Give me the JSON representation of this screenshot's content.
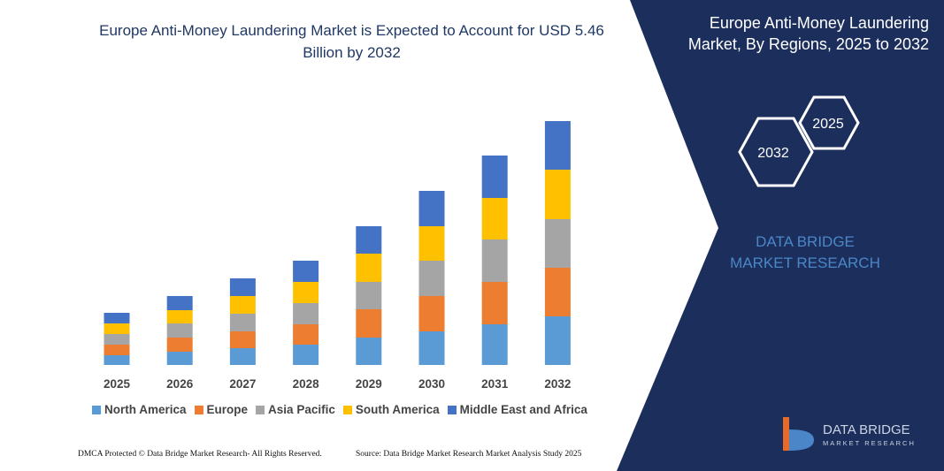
{
  "chart_data": {
    "type": "stacked_bar",
    "title": "Europe Anti-Money Laundering Market is Expected to Account for USD 5.46 Billion by 2032",
    "categories": [
      "2025",
      "2026",
      "2027",
      "2028",
      "2029",
      "2030",
      "2031",
      "2032"
    ],
    "series": [
      {
        "name": "North America",
        "color": "#5b9bd5",
        "values": [
          11,
          15,
          19,
          23,
          31,
          38,
          46,
          55
        ]
      },
      {
        "name": "Europe",
        "color": "#ed7d31",
        "values": [
          12,
          16,
          19,
          23,
          32,
          40,
          48,
          55
        ]
      },
      {
        "name": "Asia Pacific",
        "color": "#a5a5a5",
        "values": [
          12,
          16,
          20,
          24,
          31,
          40,
          48,
          55
        ]
      },
      {
        "name": "South America",
        "color": "#ffc000",
        "values": [
          12,
          15,
          20,
          24,
          32,
          39,
          47,
          56
        ]
      },
      {
        "name": "Middle East and Africa",
        "color": "#4472c4",
        "values": [
          12,
          16,
          20,
          24,
          31,
          40,
          48,
          55
        ]
      }
    ]
  },
  "side_panel": {
    "title": "Europe Anti-Money Laundering Market, By Regions, 2025 to 2032",
    "hex_labels": [
      "2025",
      "2032"
    ],
    "brand": "DATA BRIDGE MARKET RESEARCH"
  },
  "logo": {
    "name": "DATA BRIDGE",
    "tagline": "MARKET RESEARCH"
  },
  "footer": {
    "left": "DMCA Protected © Data Bridge Market Research-  All Rights Reserved.",
    "right": "Source: Data Bridge Market Research  Market Analysis Study 2025"
  }
}
